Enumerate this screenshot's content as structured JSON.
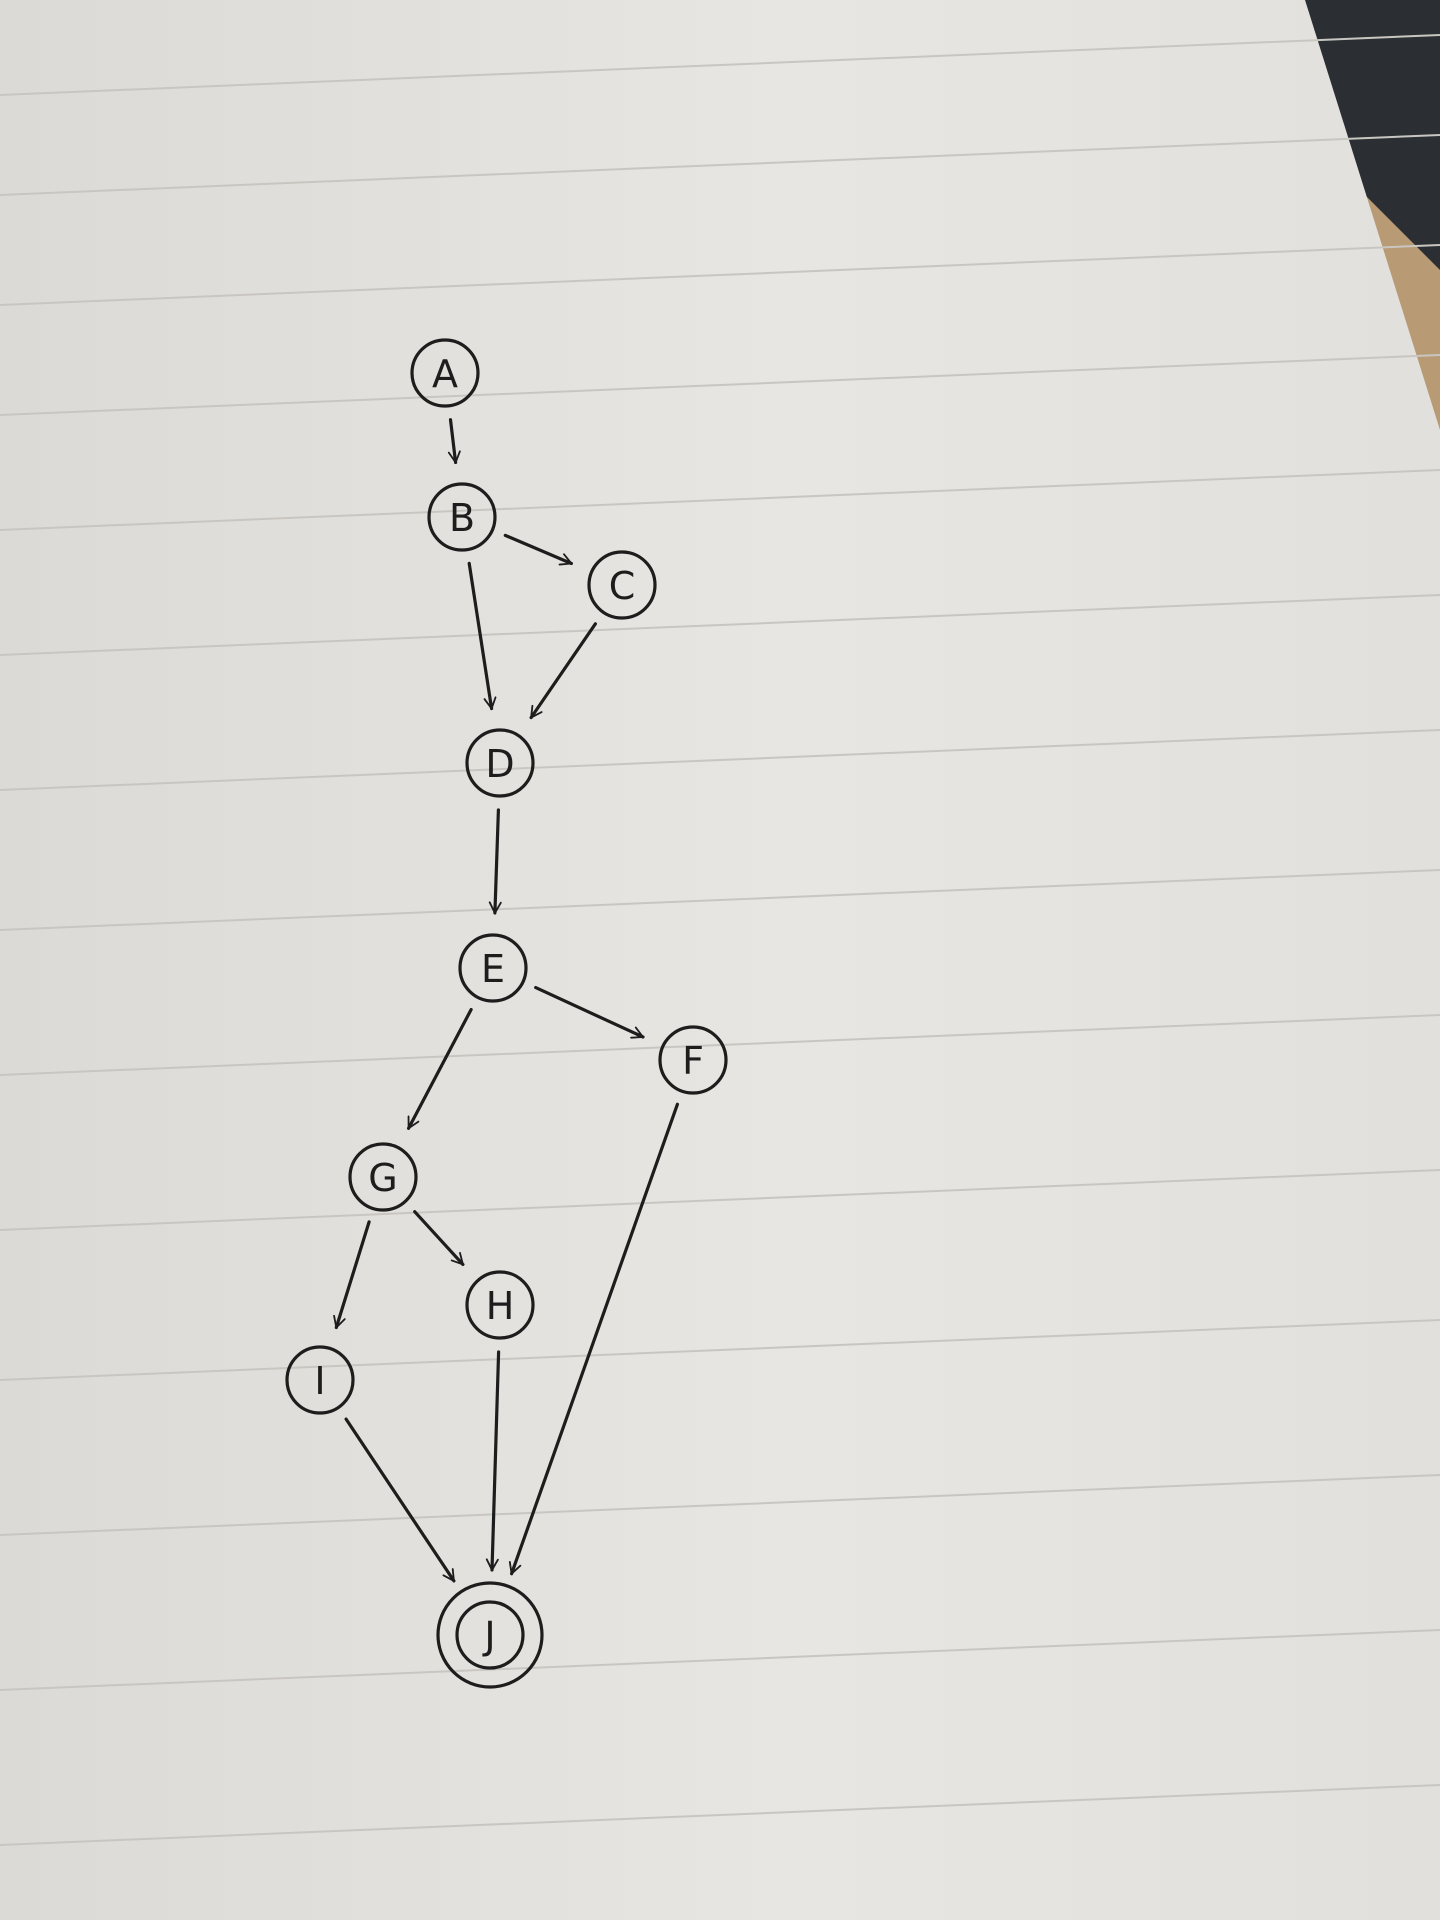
{
  "diagram": {
    "type": "directed-graph",
    "medium": "hand-drawn on lined notebook paper",
    "colors": {
      "paper": "#e6e4e0",
      "paper_shadow": "#d9d6d2",
      "rule_lines": "#c9c6c2",
      "ink": "#1d1d1d",
      "table": "#b89a74",
      "dark_object": "#2b2f33"
    },
    "nodes": [
      {
        "id": "A",
        "label": "A",
        "terminal": false
      },
      {
        "id": "B",
        "label": "B",
        "terminal": false
      },
      {
        "id": "C",
        "label": "C",
        "terminal": false
      },
      {
        "id": "D",
        "label": "D",
        "terminal": false
      },
      {
        "id": "E",
        "label": "E",
        "terminal": false
      },
      {
        "id": "F",
        "label": "F",
        "terminal": false
      },
      {
        "id": "G",
        "label": "G",
        "terminal": false
      },
      {
        "id": "H",
        "label": "H",
        "terminal": false
      },
      {
        "id": "I",
        "label": "I",
        "terminal": false
      },
      {
        "id": "J",
        "label": "J",
        "terminal": true
      }
    ],
    "edges": [
      {
        "from": "A",
        "to": "B"
      },
      {
        "from": "B",
        "to": "C"
      },
      {
        "from": "B",
        "to": "D"
      },
      {
        "from": "C",
        "to": "D"
      },
      {
        "from": "D",
        "to": "E"
      },
      {
        "from": "E",
        "to": "F"
      },
      {
        "from": "E",
        "to": "G"
      },
      {
        "from": "G",
        "to": "H"
      },
      {
        "from": "G",
        "to": "I"
      },
      {
        "from": "I",
        "to": "J"
      },
      {
        "from": "H",
        "to": "J"
      },
      {
        "from": "F",
        "to": "J"
      }
    ]
  }
}
